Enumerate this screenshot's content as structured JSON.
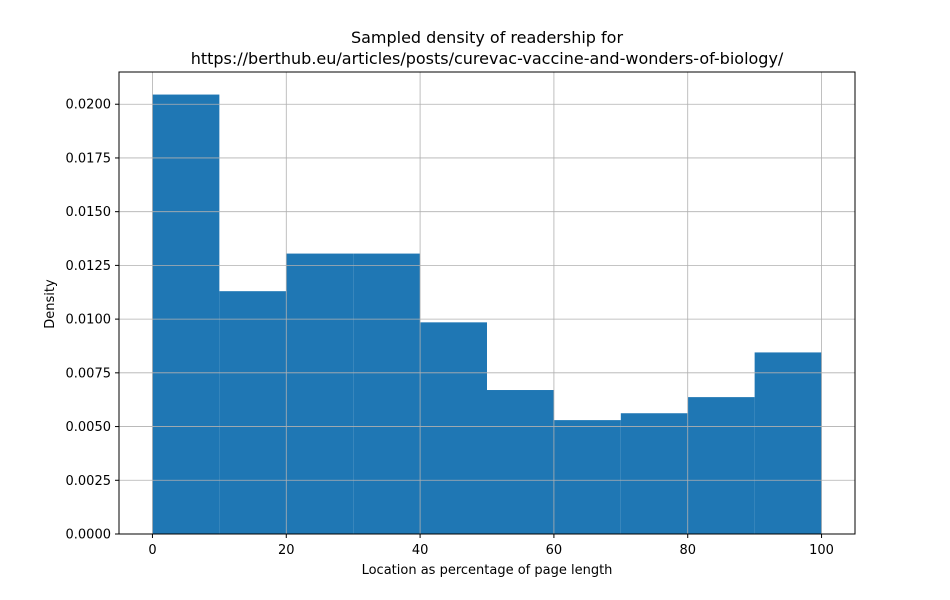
{
  "chart_data": {
    "type": "bar",
    "title": [
      "Sampled density of readership for",
      "https://berthub.eu/articles/posts/curevac-vaccine-and-wonders-of-biology/"
    ],
    "xlabel": "Location as percentage of page length",
    "ylabel": "Density",
    "xlim": [
      -5,
      105
    ],
    "ylim": [
      0,
      0.0215
    ],
    "xticks": [
      0,
      20,
      40,
      60,
      80,
      100
    ],
    "xtick_labels": [
      "0",
      "20",
      "40",
      "60",
      "80",
      "100"
    ],
    "yticks": [
      0,
      0.0025,
      0.005,
      0.0075,
      0.01,
      0.0125,
      0.015,
      0.0175,
      0.02
    ],
    "ytick_labels": [
      "0.0000",
      "0.0025",
      "0.0050",
      "0.0075",
      "0.0100",
      "0.0125",
      "0.0150",
      "0.0175",
      "0.0200"
    ],
    "bins": [
      {
        "x0": 0,
        "x1": 10,
        "value": 0.02045
      },
      {
        "x0": 10,
        "x1": 20,
        "value": 0.0113
      },
      {
        "x0": 20,
        "x1": 30,
        "value": 0.01305
      },
      {
        "x0": 30,
        "x1": 40,
        "value": 0.01305
      },
      {
        "x0": 40,
        "x1": 50,
        "value": 0.00985
      },
      {
        "x0": 50,
        "x1": 60,
        "value": 0.0067
      },
      {
        "x0": 60,
        "x1": 70,
        "value": 0.0053
      },
      {
        "x0": 70,
        "x1": 80,
        "value": 0.00562
      },
      {
        "x0": 80,
        "x1": 90,
        "value": 0.00637
      },
      {
        "x0": 90,
        "x1": 100,
        "value": 0.00845
      }
    ],
    "grid": true,
    "colors": {
      "bar": "#1f77b4",
      "grid": "#b0b0b0",
      "axis": "#000000"
    }
  }
}
